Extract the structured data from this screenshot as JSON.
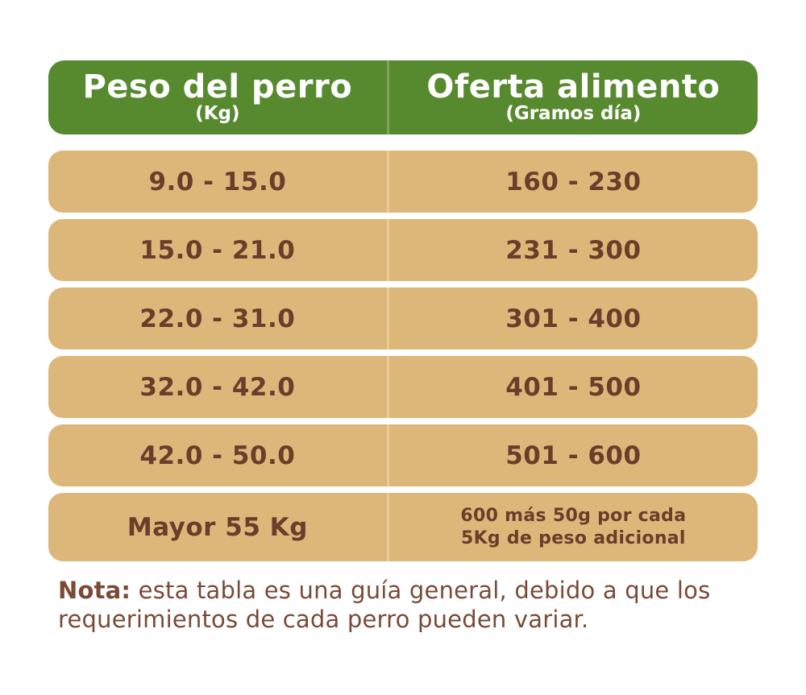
{
  "chart_data": {
    "type": "table",
    "columns": [
      "Peso del perro (Kg)",
      "Oferta alimento (Gramos día)"
    ],
    "rows": [
      [
        "9.0 - 15.0",
        "160 - 230"
      ],
      [
        "15.0 - 21.0",
        "231 - 300"
      ],
      [
        "22.0 - 31.0",
        "301 - 400"
      ],
      [
        "32.0 - 42.0",
        "401 - 500"
      ],
      [
        "42.0 - 50.0",
        "501 - 600"
      ],
      [
        "Mayor 55 Kg",
        "600 más 50g por cada 5Kg de peso adicional"
      ]
    ],
    "note": "Nota: esta tabla es una guía general, debido a que los requerimientos de cada perro pueden variar."
  },
  "table": {
    "header": {
      "col1": {
        "title": "Peso del perro",
        "subtitle": "(Kg)"
      },
      "col2": {
        "title": "Oferta alimento",
        "subtitle": "(Gramos día)"
      }
    },
    "rows": [
      {
        "weight": "9.0 - 15.0",
        "food": "160 - 230"
      },
      {
        "weight": "15.0 - 21.0",
        "food": "231 - 300"
      },
      {
        "weight": "22.0 - 31.0",
        "food": "301 - 400"
      },
      {
        "weight": "32.0 - 42.0",
        "food": "401 - 500"
      },
      {
        "weight": "42.0 - 50.0",
        "food": "501 - 600"
      },
      {
        "weight": "Mayor 55 Kg",
        "food_lines": [
          "600 más 50g por cada",
          "5Kg de peso adicional"
        ]
      }
    ]
  },
  "note": {
    "label": "Nota:",
    "text": "esta tabla es una guía general, debido a que los requerimientos de cada perro pueden variar."
  },
  "colors": {
    "header_green": "#578A2F",
    "row_tan": "#DDB779",
    "cell_text_brown": "#6B3D2B",
    "note_brown": "#7A4A36",
    "header_text": "#FFFFFF"
  }
}
